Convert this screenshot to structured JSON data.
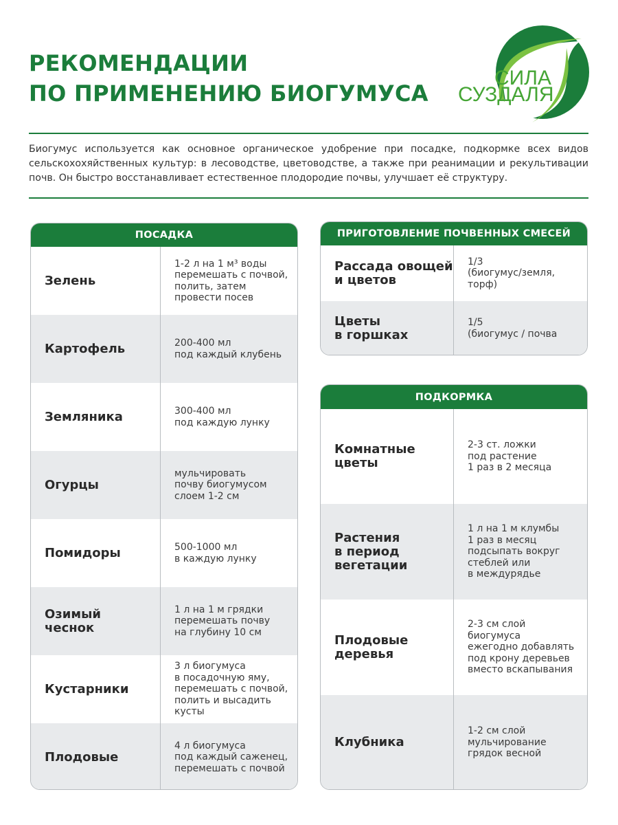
{
  "title": {
    "line1": "РЕКОМЕНДАЦИИ",
    "line2": "ПО ПРИМЕНЕНИЮ БИОГУМУСА"
  },
  "logo": {
    "line1": "СИЛА",
    "line2": "СУЗДАЛЯ",
    "colors": {
      "dark": "#1b7d3b",
      "light": "#7cc242"
    }
  },
  "intro": "Биогумус используется как основное органическое удобрение при посадке, подкормке всех видов сельскохохяйственных культур: в лесоводстве, цветоводстве, а также при реанимации и рекультивации почв. Он быстро восстанавливает естественное плодородие почвы, улучшает её структуру.",
  "colors": {
    "accent": "#1b7d3b",
    "row_alt": "#e8eaec"
  },
  "planting": {
    "header": "ПОСАДКА",
    "rows": [
      {
        "name": "Зелень",
        "value": "1-2 л на 1 м³ воды\nперемешать с почвой,\nполить, затем\nпровести посев"
      },
      {
        "name": "Картофель",
        "value": "200-400 мл\nпод каждый клубень"
      },
      {
        "name": "Земляника",
        "value": "300-400 мл\nпод каждую лунку"
      },
      {
        "name": "Огурцы",
        "value": "мульчировать\nпочву биогумусом\nслоем 1-2 см"
      },
      {
        "name": "Помидоры",
        "value": "500-1000 мл\nв каждую лунку"
      },
      {
        "name": "Озимый\nчеснок",
        "value": "1 л на 1 м грядки\nперемешать почву\nна глубину 10 см"
      },
      {
        "name": "Кустарники",
        "value": "3 л биогумуса\nв посадочную яму,\nперемешать с почвой,\nполить и высадить\nкусты"
      },
      {
        "name": "Плодовые",
        "value": "4 л биогумуса\nпод каждый саженец,\nперемешать с почвой"
      }
    ]
  },
  "mixes": {
    "header": "ПРИГОТОВЛЕНИЕ ПОЧВЕННЫХ СМЕСЕЙ",
    "rows": [
      {
        "name": "Рассада овощей\nи цветов",
        "value": "1/3\n(биогумус/земля,\nторф)"
      },
      {
        "name": "Цветы\nв горшках",
        "value": "1/5\n(биогумус / почва"
      }
    ]
  },
  "feeding": {
    "header": "ПОДКОРМКА",
    "rows": [
      {
        "name": "Комнатные\nцветы",
        "value": "2-3 ст. ложки\nпод растение\n1 раз в 2 месяца"
      },
      {
        "name": "Растения\nв период\nвегетации",
        "value": "1 л на 1 м клумбы\n1 раз в месяц\nподсыпать вокруг\nстеблей или\nв междурядье"
      },
      {
        "name": "Плодовые\nдеревья",
        "value": "2-3 см слой\nбиогумуса\nежегодно добавлять\nпод крону деревьев\nвместо вскапывания"
      },
      {
        "name": "Клубника",
        "value": "1-2 см слой\nмульчирование\nгрядок весной"
      }
    ]
  }
}
